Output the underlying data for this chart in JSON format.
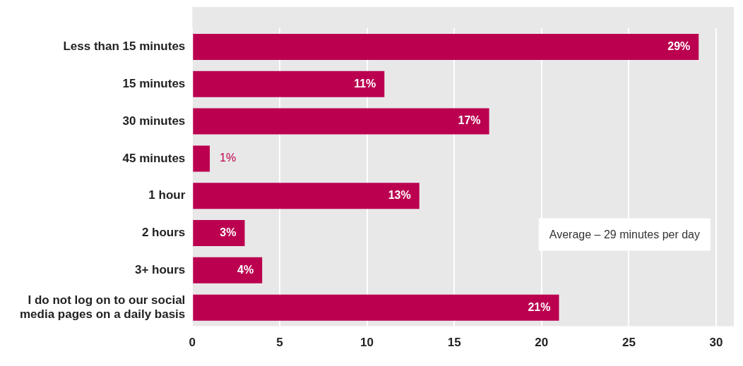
{
  "chart_data": {
    "type": "bar",
    "orientation": "horizontal",
    "categories": [
      "Less than 15 minutes",
      "15 minutes",
      "30 minutes",
      "45 minutes",
      "1 hour",
      "2 hours",
      "3+ hours",
      "I do not log on to our social media pages on a daily basis"
    ],
    "values": [
      29,
      11,
      17,
      1,
      13,
      3,
      4,
      21
    ],
    "value_labels": [
      "29%",
      "11%",
      "17%",
      "1%",
      "13%",
      "3%",
      "4%",
      "21%"
    ],
    "color": "#bb0050",
    "xlim": [
      0,
      30
    ],
    "xticks": [
      0,
      5,
      10,
      15,
      20,
      25,
      30
    ],
    "grid": "x",
    "legend": false,
    "annotations": [
      "Average – 29 minutes per day"
    ]
  }
}
